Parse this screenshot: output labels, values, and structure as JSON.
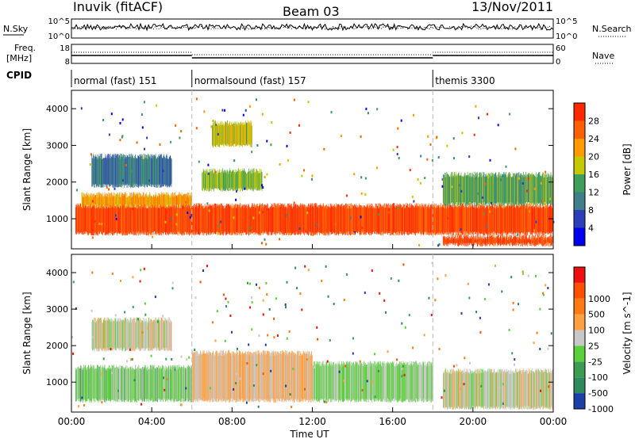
{
  "header": {
    "station": "Inuvik (fitACF)",
    "beam": "Beam 03",
    "date": "13/Nov/2011"
  },
  "strip_panels": {
    "nsky": {
      "label": "N.Sky",
      "tick_top": "10^5",
      "tick_bottom": "10^0"
    },
    "nsearch": {
      "label": "N.Search",
      "tick_top": "10^5",
      "tick_bottom": "10^0"
    },
    "freq": {
      "label_line1": "Freq.",
      "label_line2": "[MHz]",
      "tick_top": "18",
      "tick_bottom": "8"
    },
    "nave": {
      "label": "Nave",
      "tick_top": "60",
      "tick_bottom": "0"
    },
    "cpid": {
      "label": "CPID",
      "segments": [
        {
          "name": "normal (fast) 151",
          "start_hour": 0,
          "end_hour": 6
        },
        {
          "name": "normalsound (fast) 157",
          "start_hour": 6,
          "end_hour": 18
        },
        {
          "name": "themis 3300",
          "start_hour": 18,
          "end_hour": 24
        }
      ]
    }
  },
  "chart_data": [
    {
      "type": "heatmap",
      "title": "",
      "ylabel": "Slant Range [km]",
      "y_ticks": [
        "1000",
        "2000",
        "3000",
        "4000"
      ],
      "ylim": [
        180,
        4500
      ],
      "xlim_hours": [
        0,
        24
      ],
      "colorbar": {
        "label": "Power [dB]",
        "tick_labels": [
          "4",
          "8",
          "12",
          "16",
          "20",
          "24",
          "28"
        ],
        "colors": [
          "#0000ee",
          "#2d3fb8",
          "#3f7f8a",
          "#3f9e5a",
          "#c6c800",
          "#ff9a00",
          "#ff6000",
          "#ff2a00"
        ],
        "range": [
          0,
          32
        ]
      },
      "echo_bands": [
        {
          "start_hour": 0.2,
          "end_hour": 24.0,
          "range_low": 600,
          "range_high": 1350,
          "value": 28
        },
        {
          "start_hour": 0.5,
          "end_hour": 6.0,
          "range_low": 1350,
          "range_high": 1650,
          "value": 22
        },
        {
          "start_hour": 1.0,
          "end_hour": 5.0,
          "range_low": 1900,
          "range_high": 2700,
          "value": 10
        },
        {
          "start_hour": 6.5,
          "end_hour": 9.5,
          "range_low": 1800,
          "range_high": 2300,
          "value": 16
        },
        {
          "start_hour": 7.0,
          "end_hour": 9.0,
          "range_low": 3000,
          "range_high": 3600,
          "value": 18
        },
        {
          "start_hour": 18.5,
          "end_hour": 24.0,
          "range_low": 300,
          "range_high": 500,
          "value": 28
        },
        {
          "start_hour": 18.5,
          "end_hour": 24.0,
          "range_low": 1400,
          "range_high": 2200,
          "value": 14
        }
      ]
    },
    {
      "type": "heatmap",
      "title": "",
      "xlabel": "Time UT",
      "ylabel": "Slant Range [km]",
      "x_ticks": [
        "00:00",
        "04:00",
        "08:00",
        "12:00",
        "16:00",
        "20:00",
        "00:00"
      ],
      "y_ticks": [
        "1000",
        "2000",
        "3000",
        "4000"
      ],
      "ylim": [
        180,
        4500
      ],
      "xlim_hours": [
        0,
        24
      ],
      "colorbar": {
        "label": "Velocity [m s^-1]",
        "tick_labels": [
          "1000",
          "500",
          "100",
          "25",
          "-25",
          "-100",
          "-500",
          "-1000"
        ],
        "colors": [
          "#1a3fa8",
          "#2e8a5a",
          "#3c9c52",
          "#5ad03a",
          "#c8c8c8",
          "#ffa040",
          "#ff7a10",
          "#ff5000",
          "#ee1010"
        ],
        "range": [
          -1200,
          1200
        ]
      },
      "echo_bands": [
        {
          "start_hour": 0.2,
          "end_hour": 6.0,
          "range_low": 500,
          "range_high": 1400,
          "value": -200
        },
        {
          "start_hour": 1.0,
          "end_hour": 5.0,
          "range_low": 1900,
          "range_high": 2700,
          "value": 0
        },
        {
          "start_hour": 6.0,
          "end_hour": 12.0,
          "range_low": 500,
          "range_high": 1800,
          "value": 150
        },
        {
          "start_hour": 12.0,
          "end_hour": 18.0,
          "range_low": 500,
          "range_high": 1500,
          "value": -150
        },
        {
          "start_hour": 18.5,
          "end_hour": 24.0,
          "range_low": 300,
          "range_high": 1300,
          "value": 0
        }
      ]
    }
  ]
}
